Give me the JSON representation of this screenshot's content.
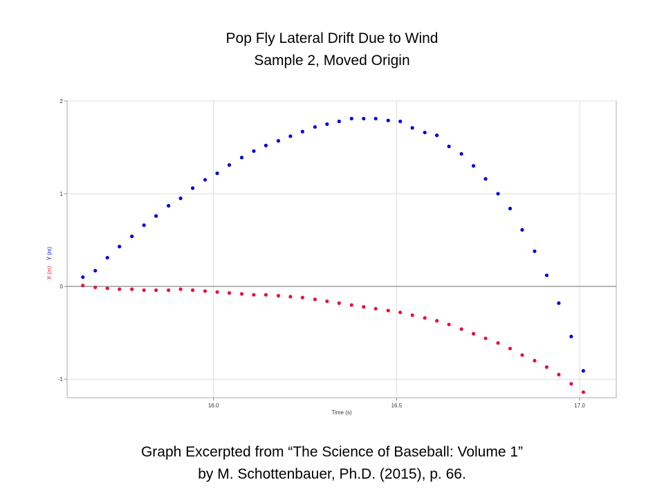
{
  "chart_data": {
    "type": "scatter",
    "title": "Pop Fly Lateral Drift Due to Wind",
    "subtitle": "Sample 2, Moved Origin",
    "notes": [
      "Graph Excerpted from “The Science of Baseball: Volume 1”",
      "by M. Schottenbauer, Ph.D. (2015), p. 66."
    ],
    "x_label": "Time (s)",
    "x": [
      15.643,
      15.677,
      15.71,
      15.743,
      15.777,
      15.81,
      15.843,
      15.877,
      15.91,
      15.943,
      15.977,
      16.01,
      16.043,
      16.077,
      16.11,
      16.143,
      16.177,
      16.21,
      16.243,
      16.277,
      16.31,
      16.343,
      16.377,
      16.41,
      16.443,
      16.477,
      16.51,
      16.543,
      16.577,
      16.61,
      16.643,
      16.677,
      16.71,
      16.743,
      16.777,
      16.81,
      16.843,
      16.877,
      16.91,
      16.943,
      16.977,
      17.01
    ],
    "series": [
      {
        "name": "Y (m)",
        "color": "#0000e0",
        "values": [
          0.1,
          0.17,
          0.31,
          0.43,
          0.54,
          0.66,
          0.76,
          0.87,
          0.95,
          1.06,
          1.15,
          1.22,
          1.31,
          1.39,
          1.46,
          1.52,
          1.57,
          1.62,
          1.67,
          1.72,
          1.75,
          1.78,
          1.81,
          1.81,
          1.81,
          1.79,
          1.78,
          1.71,
          1.66,
          1.63,
          1.51,
          1.43,
          1.3,
          1.16,
          1.0,
          0.84,
          0.61,
          0.38,
          0.12,
          -0.18,
          -0.54,
          -0.91
        ]
      },
      {
        "name": "X (m)",
        "color": "#e8103a",
        "values": [
          0.01,
          -0.01,
          -0.02,
          -0.03,
          -0.03,
          -0.04,
          -0.04,
          -0.04,
          -0.03,
          -0.04,
          -0.05,
          -0.06,
          -0.07,
          -0.08,
          -0.09,
          -0.09,
          -0.1,
          -0.11,
          -0.12,
          -0.14,
          -0.16,
          -0.18,
          -0.2,
          -0.22,
          -0.24,
          -0.26,
          -0.28,
          -0.31,
          -0.34,
          -0.37,
          -0.41,
          -0.46,
          -0.51,
          -0.56,
          -0.61,
          -0.67,
          -0.74,
          -0.8,
          -0.87,
          -0.95,
          -1.05,
          -1.14
        ]
      }
    ],
    "xlim": [
      15.6,
      17.1
    ],
    "ylim": [
      -1.2,
      2
    ],
    "xticks": [
      {
        "value": 16,
        "label": "16.0"
      },
      {
        "value": 16.5,
        "label": "16.5"
      },
      {
        "value": 17,
        "label": "17.0"
      }
    ],
    "yticks": [
      -1,
      0,
      1,
      2
    ],
    "grid": true
  }
}
